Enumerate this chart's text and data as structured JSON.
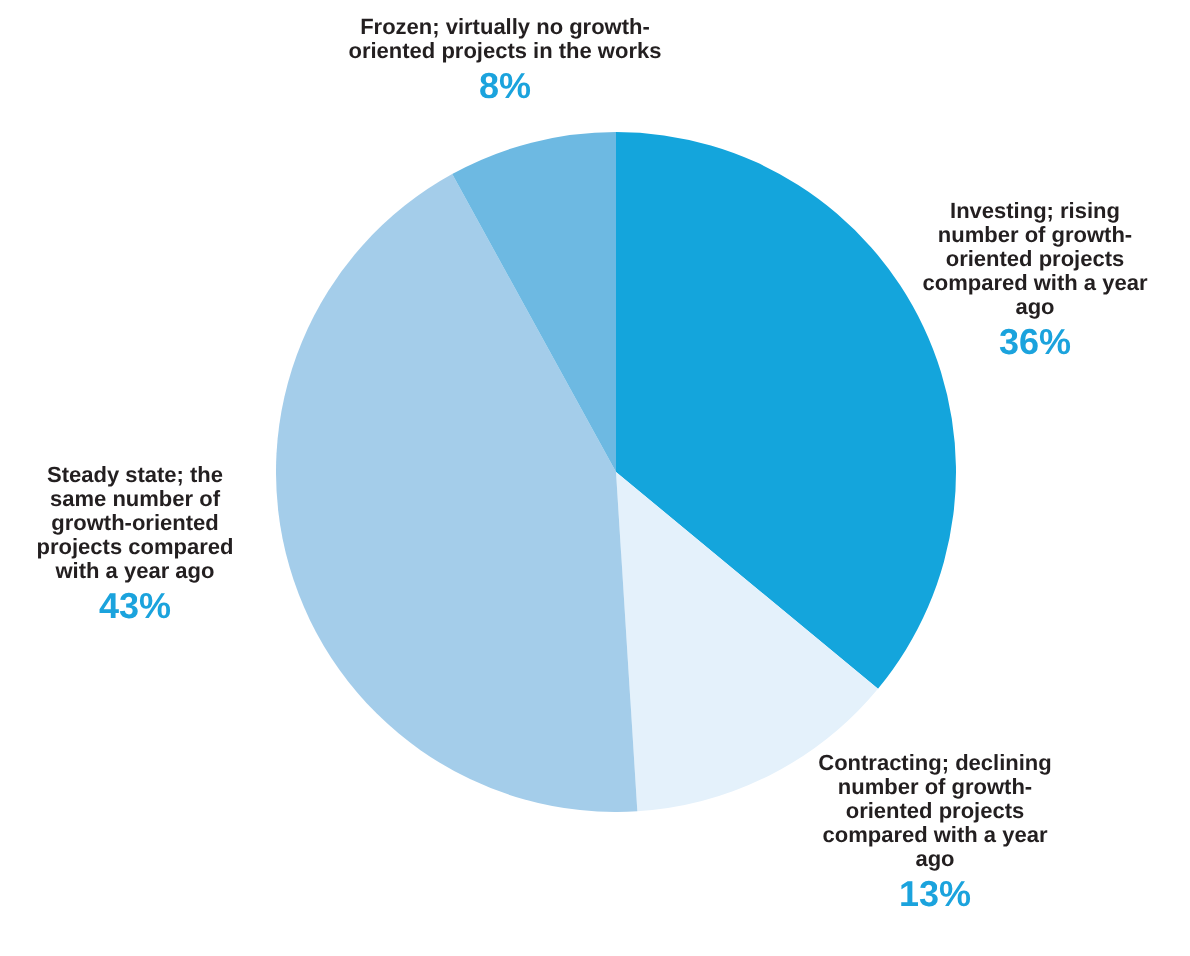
{
  "chart_data": {
    "type": "pie",
    "categories": [
      "Investing; rising number of growth-oriented projects compared with a year ago",
      "Contracting; declining number of growth-oriented projects compared with a year ago",
      "Steady state; the same number of growth-oriented projects compared with a year ago",
      "Frozen; virtually no growth-oriented projects in the works"
    ],
    "values": [
      36,
      13,
      43,
      8
    ],
    "value_labels": [
      "36%",
      "13%",
      "43%",
      "8%"
    ],
    "colors": [
      "#14a5dc",
      "#e4f1fb",
      "#a4cdea",
      "#6db9e2"
    ],
    "legend": false
  }
}
